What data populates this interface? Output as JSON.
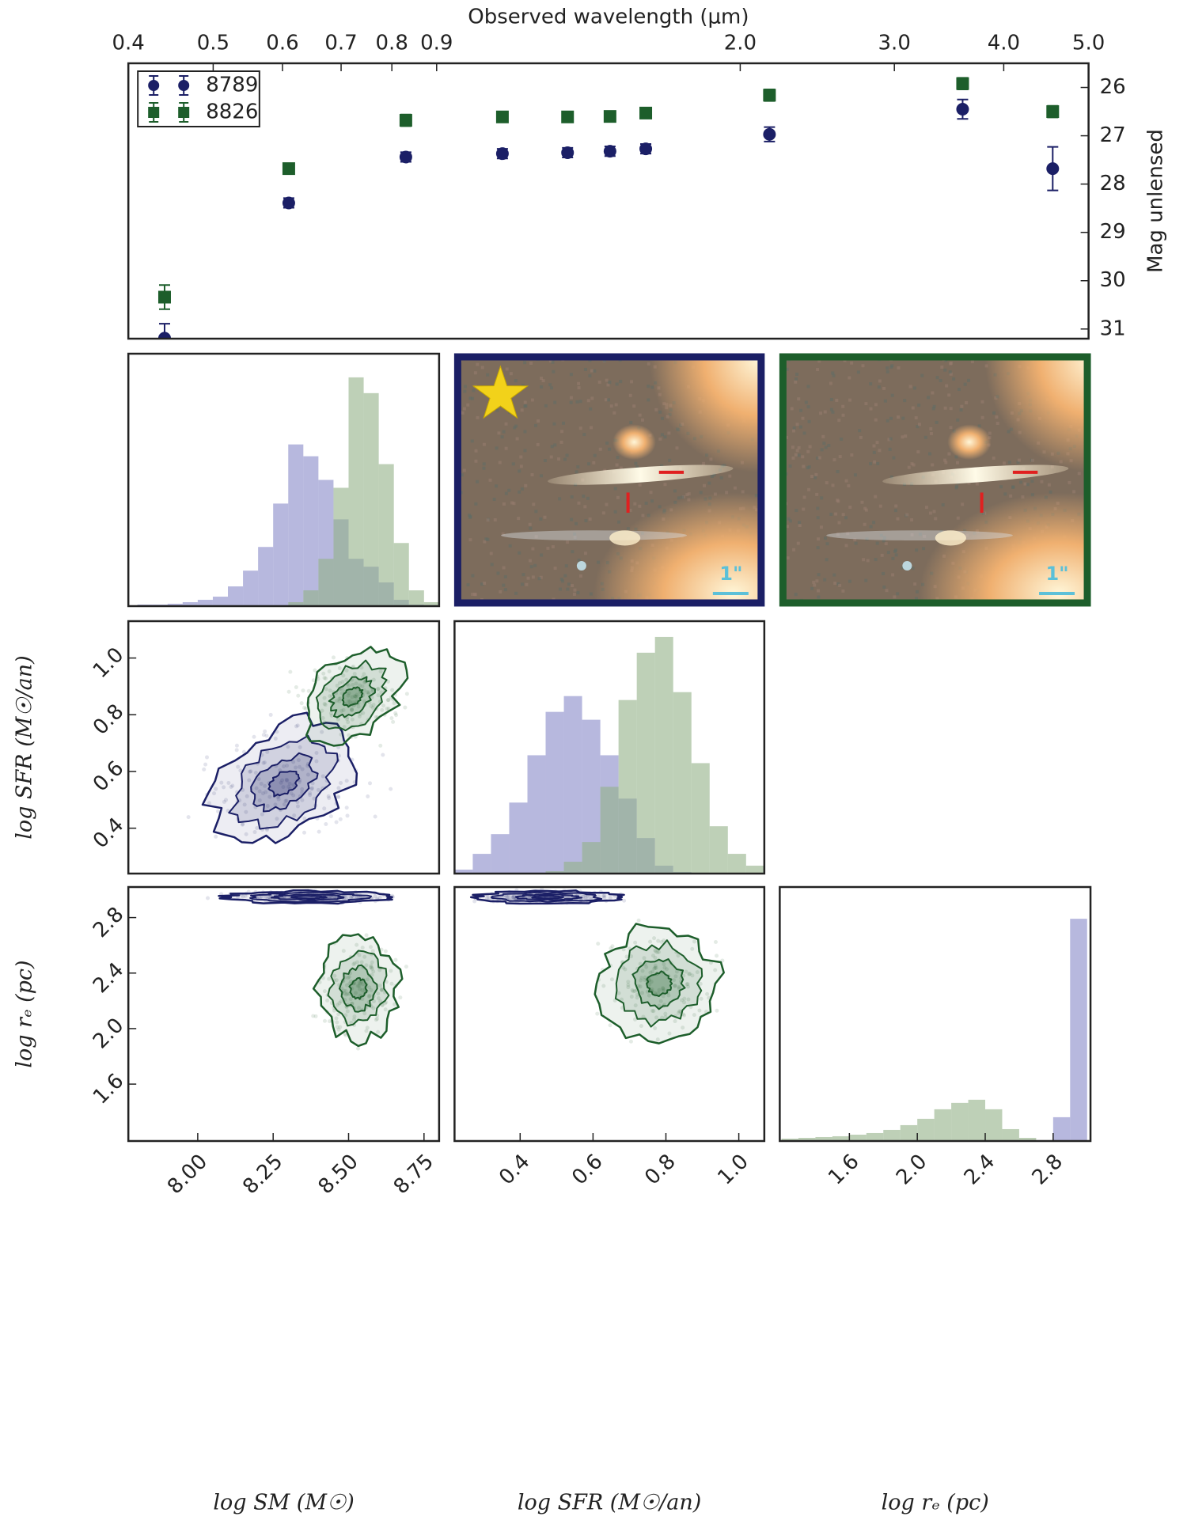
{
  "chart_data": [
    {
      "type": "scatter",
      "x_label": "Observed wavelength (μm)",
      "y_label": "Mag unlensed",
      "x_scale": "log",
      "x": [
        0.44,
        0.61,
        0.83,
        1.07,
        1.27,
        1.42,
        1.56,
        2.16,
        3.59,
        4.55
      ],
      "xlim": [
        0.4,
        5.0
      ],
      "xticks": [
        0.4,
        0.5,
        0.6,
        0.7,
        0.8,
        0.9,
        {
          "value": 2,
          "label": "2.0"
        },
        {
          "value": 3,
          "label": "3.0"
        },
        {
          "value": 4,
          "label": "4.0"
        },
        {
          "value": 5,
          "label": "5.0"
        }
      ],
      "ylim": [
        31.2,
        25.5
      ],
      "yticks": [
        26,
        27,
        28,
        29,
        30,
        31
      ],
      "legend": "upper left",
      "series": [
        {
          "name": "8789",
          "color": "#1b1f66",
          "marker": "circle",
          "values": [
            31.19,
            28.39,
            27.44,
            27.37,
            27.35,
            27.32,
            27.27,
            26.97,
            26.45,
            27.68
          ],
          "errors": [
            0.3,
            0.1,
            0.1,
            0.1,
            0.1,
            0.1,
            0.1,
            0.15,
            0.2,
            0.45
          ]
        },
        {
          "name": "8826",
          "color": "#1d5e2b",
          "marker": "square",
          "values": [
            30.34,
            27.68,
            26.68,
            26.61,
            26.61,
            26.6,
            26.53,
            26.16,
            25.92,
            26.5
          ],
          "errors": [
            0.25,
            0.1,
            0.12,
            0.1,
            0.1,
            0.1,
            0.1,
            0.12,
            0.12,
            0.12
          ]
        }
      ]
    },
    {
      "type": "histogram",
      "xlim": [
        7.77,
        8.8
      ],
      "ylim": [
        0,
        320
      ],
      "bins": [
        7.8,
        7.85,
        7.9,
        7.95,
        8.0,
        8.05,
        8.1,
        8.15,
        8.2,
        8.25,
        8.3,
        8.35,
        8.4,
        8.45,
        8.5,
        8.55,
        8.6,
        8.65,
        8.7,
        8.75,
        8.8
      ],
      "series": [
        {
          "color": "#8789c8",
          "values": [
            2,
            2,
            3,
            5,
            8,
            12,
            25,
            45,
            75,
            130,
            205,
            190,
            160,
            110,
            60,
            50,
            30,
            8,
            2,
            0
          ]
        },
        {
          "color": "#93b087",
          "values": [
            0,
            0,
            0,
            0,
            0,
            0,
            0,
            0,
            0,
            0,
            5,
            20,
            60,
            150,
            290,
            270,
            180,
            80,
            20,
            5
          ]
        }
      ]
    },
    {
      "type": "contour",
      "xlim": [
        7.77,
        8.8
      ],
      "ylim": [
        0.24,
        1.13
      ],
      "y_label": "log SFR (M☉/an)",
      "yticks": [
        {
          "value": 1,
          "label": "1.0"
        },
        0.8,
        0.6,
        0.4
      ],
      "series": [
        {
          "color": "#1b1f66"
        },
        {
          "color": "#1d5e2b"
        }
      ]
    },
    {
      "type": "histogram",
      "xlim": [
        0.22,
        1.07
      ],
      "ylim": [
        0,
        320
      ],
      "bins": [
        0.22,
        0.27,
        0.32,
        0.37,
        0.42,
        0.47,
        0.52,
        0.57,
        0.62,
        0.67,
        0.72,
        0.77,
        0.82,
        0.87,
        0.92,
        0.97,
        1.02,
        1.07
      ],
      "series": [
        {
          "color": "#8789c8",
          "values": [
            5,
            25,
            50,
            90,
            150,
            205,
            225,
            195,
            150,
            95,
            45,
            10,
            2,
            0,
            0,
            0,
            0
          ]
        },
        {
          "color": "#93b087",
          "values": [
            0,
            0,
            0,
            0,
            0,
            3,
            15,
            40,
            110,
            220,
            280,
            300,
            230,
            140,
            60,
            25,
            10
          ]
        }
      ]
    },
    {
      "type": "contour",
      "xlim": [
        7.77,
        8.8
      ],
      "ylim": [
        1.19,
        3.02
      ],
      "x_label": "log SM (M☉)",
      "xticks": [
        {
          "value": 8,
          "label": "8.00"
        },
        8.25,
        {
          "value": 8.5,
          "label": "8.50"
        },
        8.75
      ],
      "y_label": "log rₑ (pc)",
      "yticks": [
        2.8,
        2.4,
        {
          "value": 2,
          "label": "2.0"
        },
        1.6
      ],
      "series": [
        {
          "color": "#1b1f66"
        },
        {
          "color": "#1d5e2b"
        }
      ]
    },
    {
      "type": "contour",
      "xlim": [
        0.22,
        1.07
      ],
      "ylim": [
        1.19,
        3.02
      ],
      "x_label": "log SFR (M☉/an)",
      "xticks": [
        0.4,
        0.6,
        0.8,
        {
          "value": 1,
          "label": "1.0"
        }
      ],
      "series": [
        {
          "color": "#1b1f66"
        },
        {
          "color": "#1d5e2b"
        }
      ]
    },
    {
      "type": "histogram",
      "xlim": [
        1.19,
        3.02
      ],
      "ylim": [
        0,
        320
      ],
      "x_label": "log rₑ (pc)",
      "xticks": [
        1.6,
        {
          "value": 2,
          "label": "2.0"
        },
        2.4,
        2.8
      ],
      "bins": [
        1.2,
        1.3,
        1.4,
        1.5,
        1.6,
        1.7,
        1.8,
        1.9,
        2.0,
        2.1,
        2.2,
        2.3,
        2.4,
        2.5,
        2.6,
        2.7,
        2.8,
        2.9,
        3.0
      ],
      "series": [
        {
          "color": "#8789c8",
          "values": [
            0,
            0,
            0,
            0,
            0,
            0,
            0,
            0,
            0,
            0,
            0,
            0,
            0,
            0,
            0,
            0,
            30,
            280
          ]
        },
        {
          "color": "#93b087",
          "values": [
            3,
            4,
            5,
            6,
            8,
            10,
            14,
            20,
            28,
            40,
            48,
            52,
            40,
            15,
            4,
            1,
            0,
            0
          ]
        }
      ]
    }
  ],
  "images": [
    {
      "border_color": "#1b1f66",
      "scale_label": "1\""
    },
    {
      "border_color": "#1d5e2b",
      "scale_label": "1\""
    }
  ]
}
